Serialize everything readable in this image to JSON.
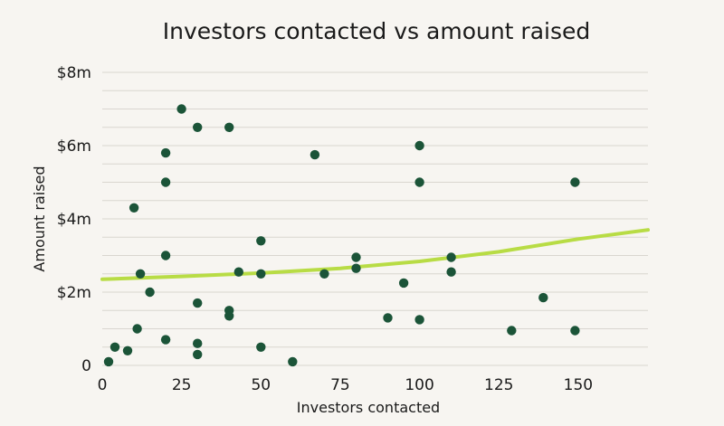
{
  "chart_data": {
    "type": "scatter",
    "title": "Investors contacted vs amount raised",
    "xlabel": "Investors contacted",
    "ylabel": "Amount raised",
    "xlim": [
      0,
      172
    ],
    "ylim": [
      0,
      8000000
    ],
    "x_ticks": [
      {
        "value": 0,
        "label": "0"
      },
      {
        "value": 25,
        "label": "25"
      },
      {
        "value": 50,
        "label": "50"
      },
      {
        "value": 75,
        "label": "75"
      },
      {
        "value": 100,
        "label": "100"
      },
      {
        "value": 125,
        "label": "125"
      },
      {
        "value": 150,
        "label": "150"
      }
    ],
    "y_ticks": [
      {
        "value": 0,
        "label": "0"
      },
      {
        "value": 2000000,
        "label": "$2m"
      },
      {
        "value": 4000000,
        "label": "$4m"
      },
      {
        "value": 6000000,
        "label": "$6m"
      },
      {
        "value": 8000000,
        "label": "$8m"
      }
    ],
    "grid": true,
    "grid_step": 500000,
    "legend": false,
    "colors": {
      "points": "#1b5438",
      "trend": "#b8dc45",
      "grid": "#d9d6d0",
      "background": "#f7f5f1"
    },
    "series": [
      {
        "points": [
          {
            "x": 2,
            "y": 100000
          },
          {
            "x": 4,
            "y": 500000
          },
          {
            "x": 8,
            "y": 400000
          },
          {
            "x": 10,
            "y": 4300000
          },
          {
            "x": 11,
            "y": 1000000
          },
          {
            "x": 12,
            "y": 2500000
          },
          {
            "x": 15,
            "y": 2000000
          },
          {
            "x": 20,
            "y": 5800000
          },
          {
            "x": 20,
            "y": 5000000
          },
          {
            "x": 20,
            "y": 3000000
          },
          {
            "x": 20,
            "y": 700000
          },
          {
            "x": 25,
            "y": 7000000
          },
          {
            "x": 30,
            "y": 6500000
          },
          {
            "x": 30,
            "y": 1700000
          },
          {
            "x": 30,
            "y": 600000
          },
          {
            "x": 30,
            "y": 300000
          },
          {
            "x": 40,
            "y": 6500000
          },
          {
            "x": 40,
            "y": 1500000
          },
          {
            "x": 40,
            "y": 1350000
          },
          {
            "x": 43,
            "y": 2550000
          },
          {
            "x": 50,
            "y": 3400000
          },
          {
            "x": 50,
            "y": 2500000
          },
          {
            "x": 50,
            "y": 500000
          },
          {
            "x": 60,
            "y": 100000
          },
          {
            "x": 67,
            "y": 5750000
          },
          {
            "x": 70,
            "y": 2500000
          },
          {
            "x": 80,
            "y": 2950000
          },
          {
            "x": 80,
            "y": 2650000
          },
          {
            "x": 90,
            "y": 1300000
          },
          {
            "x": 95,
            "y": 2250000
          },
          {
            "x": 100,
            "y": 6000000
          },
          {
            "x": 100,
            "y": 5000000
          },
          {
            "x": 100,
            "y": 1250000
          },
          {
            "x": 110,
            "y": 2950000
          },
          {
            "x": 110,
            "y": 2550000
          },
          {
            "x": 129,
            "y": 950000
          },
          {
            "x": 139,
            "y": 1850000
          },
          {
            "x": 149,
            "y": 5000000
          },
          {
            "x": 149,
            "y": 950000
          }
        ]
      }
    ],
    "trendline": {
      "points": [
        {
          "x": 0,
          "y": 2350000
        },
        {
          "x": 25,
          "y": 2430000
        },
        {
          "x": 50,
          "y": 2520000
        },
        {
          "x": 75,
          "y": 2650000
        },
        {
          "x": 100,
          "y": 2840000
        },
        {
          "x": 125,
          "y": 3100000
        },
        {
          "x": 150,
          "y": 3450000
        },
        {
          "x": 172,
          "y": 3700000
        }
      ]
    }
  }
}
